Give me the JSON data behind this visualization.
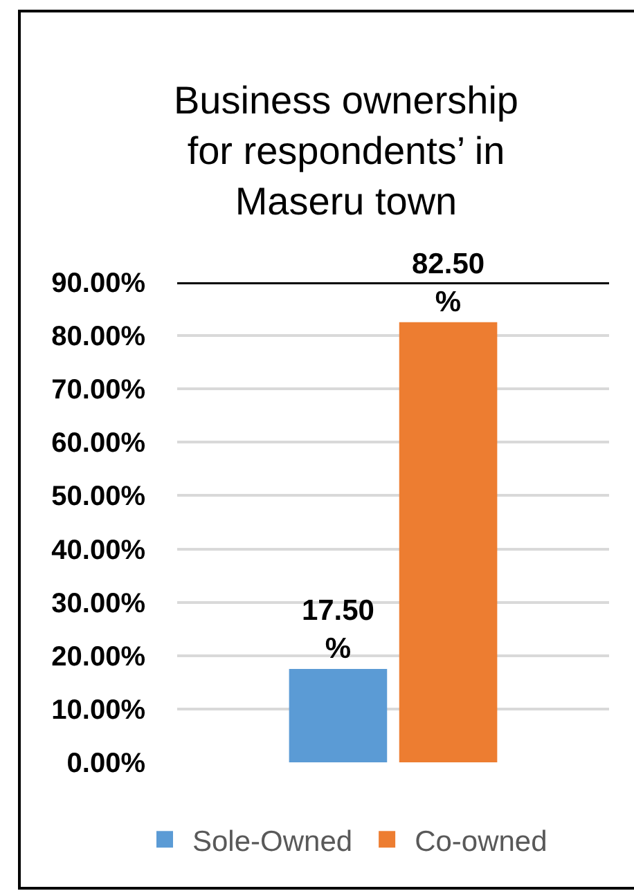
{
  "chart_data": {
    "type": "bar",
    "title": "Business ownership for respondents’ in Maseru town",
    "categories": [
      null
    ],
    "series": [
      {
        "name": "Sole-Owned",
        "color": "#5b9bd5",
        "values": [
          17.5
        ],
        "value_labels": [
          "17.50 %"
        ]
      },
      {
        "name": "Co-owned",
        "color": "#ed7d31",
        "values": [
          82.5
        ],
        "value_labels": [
          "82.50 %"
        ]
      }
    ],
    "ylim": [
      0,
      90
    ],
    "yticks": [
      {
        "value": 0,
        "label": "0.00%"
      },
      {
        "value": 10,
        "label": "10.00%"
      },
      {
        "value": 20,
        "label": "20.00%"
      },
      {
        "value": 30,
        "label": "30.00%"
      },
      {
        "value": 40,
        "label": "40.00%"
      },
      {
        "value": 50,
        "label": "50.00%"
      },
      {
        "value": 60,
        "label": "60.00%"
      },
      {
        "value": 70,
        "label": "70.00%"
      },
      {
        "value": 80,
        "label": "80.00%"
      },
      {
        "value": 90,
        "label": "90.00%"
      }
    ],
    "ref_lines": [
      {
        "axis": "y",
        "value": 90,
        "color": "#000000"
      }
    ],
    "grid": "y",
    "legend": "bottom",
    "tick_labels": "y"
  }
}
